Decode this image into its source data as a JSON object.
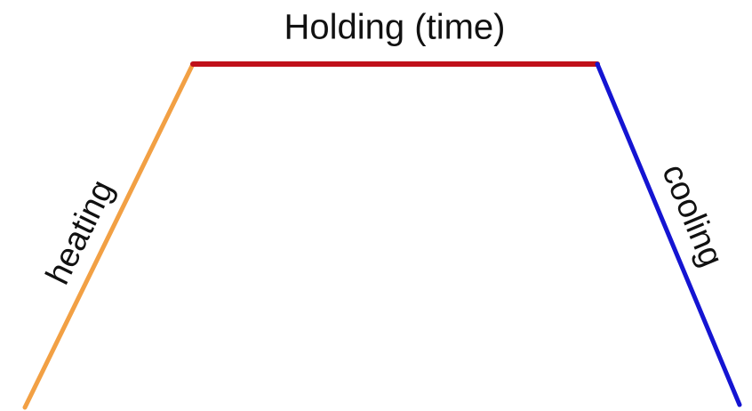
{
  "labels": {
    "heating": "heating",
    "holding": "Holding (time)",
    "cooling": "cooling"
  }
}
